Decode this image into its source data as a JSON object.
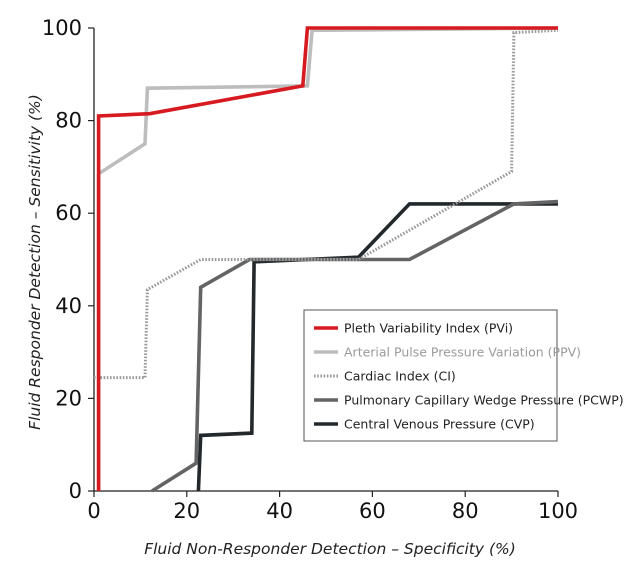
{
  "chart_data": {
    "type": "line",
    "xlabel": "Fluid Non-Responder Detection – Specificity (%)",
    "ylabel": "Fluid Responder Detection – Sensitivity (%)",
    "xlim": [
      0,
      100
    ],
    "ylim": [
      0,
      100
    ],
    "xticks": [
      0,
      20,
      40,
      60,
      80,
      100
    ],
    "yticks": [
      0,
      20,
      40,
      60,
      80,
      100
    ],
    "grid": false,
    "legend_position": "bottom-right",
    "series": [
      {
        "name": "Pleth Variability Index (PVi)",
        "color": "#d71920",
        "dash": "solid",
        "x": [
          1,
          1,
          12,
          45,
          46,
          100
        ],
        "y": [
          0,
          81,
          81.5,
          87.5,
          100,
          100
        ]
      },
      {
        "name": "Arterial Pulse Pressure Variation (PPV)",
        "color": "#bdbdbd",
        "dash": "solid",
        "x": [
          1,
          1,
          11,
          11.5,
          46,
          47,
          100
        ],
        "y": [
          0,
          68.5,
          75,
          87,
          87.5,
          99.5,
          100
        ]
      },
      {
        "name": "Cardiac Index (CI)",
        "color": "#9a9a9a",
        "dash": "dotted",
        "x": [
          0,
          11,
          11.5,
          23,
          57,
          90,
          90.5,
          100
        ],
        "y": [
          24.5,
          24.5,
          43.5,
          50,
          50,
          69,
          99,
          99.5
        ]
      },
      {
        "name": "Pulmonary Capillary Wedge Pressure (PCWP)",
        "color": "#646464",
        "dash": "solid",
        "x": [
          12.5,
          22,
          23,
          33.5,
          68,
          90.5,
          100
        ],
        "y": [
          0,
          6,
          44,
          50,
          50,
          62,
          62.5
        ]
      },
      {
        "name": "Central Venous Pressure (CVP)",
        "color": "#22282c",
        "dash": "solid",
        "x": [
          22.5,
          23,
          34,
          34.5,
          57,
          68,
          100
        ],
        "y": [
          0,
          12,
          12.5,
          49.5,
          50.5,
          62,
          62
        ]
      }
    ]
  }
}
